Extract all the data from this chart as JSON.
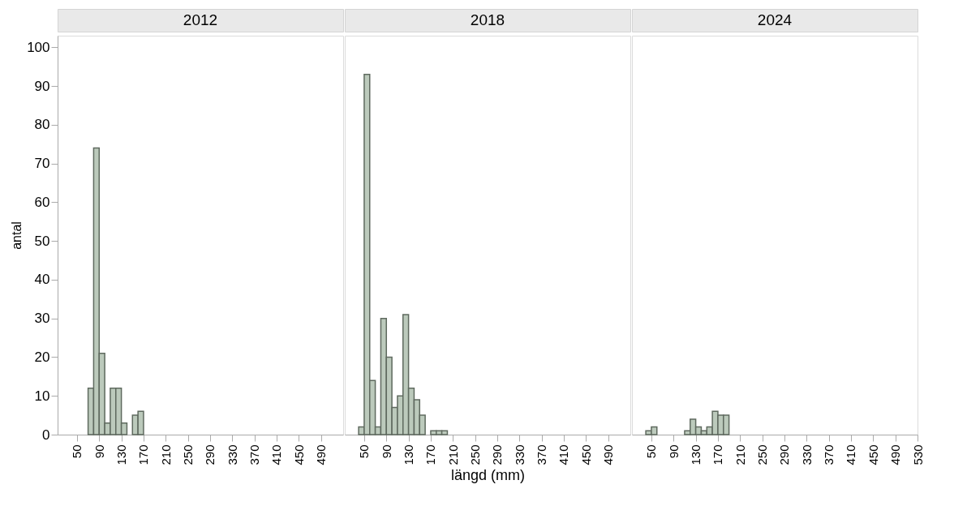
{
  "chart_data": [
    {
      "type": "histogram",
      "title": "2012",
      "ylabel": "antal",
      "color": "#bccabc",
      "bins": [
        70,
        80,
        90,
        100,
        110,
        120,
        130,
        140,
        150,
        160,
        170
      ],
      "values": [
        12,
        74,
        21,
        3,
        12,
        12,
        3,
        0,
        5,
        6
      ],
      "xlim": [
        15,
        530
      ],
      "xticks": [
        50,
        90,
        130,
        170,
        210,
        250,
        290,
        330,
        370,
        410,
        450,
        490
      ],
      "ylim": [
        0,
        103
      ],
      "yticks": [
        0,
        10,
        20,
        30,
        40,
        50,
        60,
        70,
        80,
        90,
        100
      ]
    },
    {
      "type": "histogram",
      "title": "2018",
      "xlabel": "längd (mm)",
      "color": "#bccabc",
      "bins": [
        40,
        50,
        60,
        70,
        80,
        90,
        100,
        110,
        120,
        130,
        140,
        150,
        160,
        170,
        180,
        190,
        200
      ],
      "values": [
        2,
        93,
        14,
        2,
        30,
        20,
        7,
        10,
        31,
        12,
        9,
        5,
        0,
        1,
        1,
        1
      ],
      "xlim": [
        15,
        530
      ],
      "xticks": [
        50,
        90,
        130,
        170,
        210,
        250,
        290,
        330,
        370,
        410,
        450,
        490
      ],
      "ylim": [
        0,
        103
      ],
      "tick_labels": "x"
    },
    {
      "type": "histogram",
      "title": "2024",
      "color": "#bccabc",
      "bins": [
        40,
        50,
        60,
        70,
        80,
        90,
        100,
        110,
        120,
        130,
        140,
        150,
        160,
        170,
        180,
        190
      ],
      "values": [
        1,
        2,
        0,
        0,
        0,
        0,
        0,
        1,
        4,
        2,
        1,
        2,
        6,
        5,
        5
      ],
      "xlim": [
        15,
        530
      ],
      "xticks": [
        50,
        90,
        130,
        170,
        210,
        250,
        290,
        330,
        370,
        410,
        450,
        490,
        530
      ],
      "ylim": [
        0,
        103
      ],
      "tick_labels": "x"
    }
  ]
}
